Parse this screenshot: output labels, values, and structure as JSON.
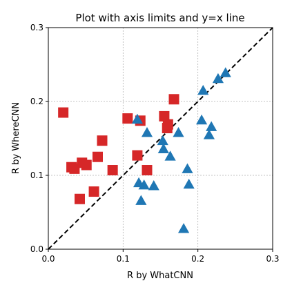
{
  "chart_data": {
    "type": "scatter",
    "title": "Plot with axis limits and y=x line",
    "xlabel": "R by WhatCNN",
    "ylabel": "R by WhereCNN",
    "xlim": [
      0.0,
      0.3
    ],
    "ylim": [
      0.0,
      0.3
    ],
    "grid": true,
    "x_ticks": [
      0.0,
      0.1,
      0.2,
      0.3
    ],
    "y_ticks": [
      0.0,
      0.1,
      0.2,
      0.3
    ],
    "x_tick_labels": [
      "0.0",
      "0.1",
      "0.2",
      "0.3"
    ],
    "y_tick_labels": [
      "0.0",
      "0.1",
      "0.2",
      "0.3"
    ],
    "reference_line": {
      "type": "y=x",
      "style": "dashed",
      "color": "#000000"
    },
    "series": [
      {
        "marker": "square",
        "color": "#d62728",
        "points": [
          [
            0.02,
            0.185
          ],
          [
            0.031,
            0.111
          ],
          [
            0.035,
            0.109
          ],
          [
            0.045,
            0.117
          ],
          [
            0.051,
            0.114
          ],
          [
            0.042,
            0.068
          ],
          [
            0.061,
            0.078
          ],
          [
            0.066,
            0.125
          ],
          [
            0.072,
            0.147
          ],
          [
            0.086,
            0.107
          ],
          [
            0.106,
            0.177
          ],
          [
            0.119,
            0.127
          ],
          [
            0.123,
            0.174
          ],
          [
            0.132,
            0.107
          ],
          [
            0.155,
            0.18
          ],
          [
            0.159,
            0.164
          ],
          [
            0.16,
            0.169
          ],
          [
            0.168,
            0.203
          ]
        ]
      },
      {
        "marker": "triangle",
        "color": "#1f77b4",
        "points": [
          [
            0.121,
            0.089
          ],
          [
            0.124,
            0.065
          ],
          [
            0.128,
            0.086
          ],
          [
            0.141,
            0.085
          ],
          [
            0.119,
            0.175
          ],
          [
            0.132,
            0.157
          ],
          [
            0.153,
            0.146
          ],
          [
            0.154,
            0.135
          ],
          [
            0.163,
            0.125
          ],
          [
            0.174,
            0.157
          ],
          [
            0.181,
            0.027
          ],
          [
            0.186,
            0.108
          ],
          [
            0.188,
            0.087
          ],
          [
            0.205,
            0.174
          ],
          [
            0.207,
            0.214
          ],
          [
            0.215,
            0.154
          ],
          [
            0.218,
            0.165
          ],
          [
            0.227,
            0.23
          ],
          [
            0.237,
            0.238
          ]
        ]
      }
    ]
  }
}
